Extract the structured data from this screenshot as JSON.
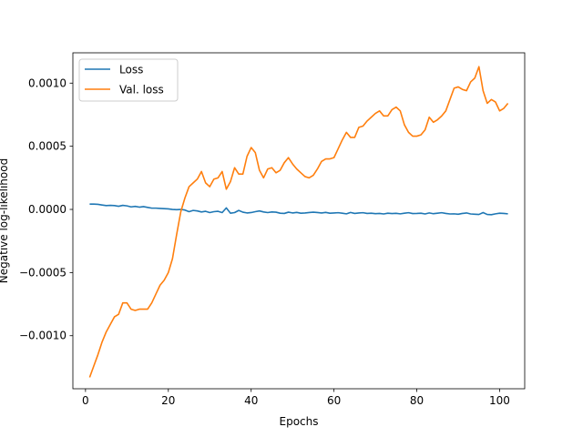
{
  "chart_data": {
    "type": "line",
    "title": "",
    "xlabel": "Epochs",
    "ylabel": "Negative log-likelihood",
    "xlim": [
      -3.05,
      106.05
    ],
    "ylim": [
      -0.00142,
      0.00124
    ],
    "xticks": [
      0,
      20,
      40,
      60,
      80,
      100
    ],
    "xtick_labels": [
      "0",
      "20",
      "40",
      "60",
      "80",
      "100"
    ],
    "yticks": [
      -0.001,
      -0.0005,
      0.0,
      0.0005,
      0.001
    ],
    "ytick_labels": [
      "−0.0010",
      "−0.0005",
      "0.0000",
      "0.0005",
      "0.0010"
    ],
    "grid": false,
    "legend_position": "top-left",
    "series": [
      {
        "name": "Loss",
        "color": "#1f77b4",
        "x": [
          1,
          2,
          3,
          4,
          5,
          6,
          7,
          8,
          9,
          10,
          11,
          12,
          13,
          14,
          15,
          16,
          17,
          18,
          19,
          20,
          21,
          22,
          23,
          24,
          25,
          26,
          27,
          28,
          29,
          30,
          31,
          32,
          33,
          34,
          35,
          36,
          37,
          38,
          39,
          40,
          41,
          42,
          43,
          44,
          45,
          46,
          47,
          48,
          49,
          50,
          51,
          52,
          53,
          54,
          55,
          56,
          57,
          58,
          59,
          60,
          61,
          62,
          63,
          64,
          65,
          66,
          67,
          68,
          69,
          70,
          71,
          72,
          73,
          74,
          75,
          76,
          77,
          78,
          79,
          80,
          81,
          82,
          83,
          84,
          85,
          86,
          87,
          88,
          89,
          90,
          91,
          92,
          93,
          94,
          95,
          96,
          97,
          98,
          99,
          100,
          101,
          102
        ],
        "y": [
          4.2e-05,
          4.2e-05,
          4e-05,
          3.5e-05,
          3e-05,
          3.2e-05,
          3e-05,
          2.5e-05,
          3.2e-05,
          2.8e-05,
          2e-05,
          2.4e-05,
          1.8e-05,
          2.2e-05,
          1.6e-05,
          1e-05,
          1e-05,
          8e-06,
          6e-06,
          4e-06,
          0.0,
          -2e-06,
          0.0,
          -5e-06,
          -1.8e-05,
          -8e-06,
          -1.2e-05,
          -2e-05,
          -1.5e-05,
          -2.5e-05,
          -1.8e-05,
          -1.5e-05,
          -2.5e-05,
          1.2e-05,
          -3e-05,
          -2.5e-05,
          -8e-06,
          -2.2e-05,
          -2.8e-05,
          -2.5e-05,
          -1.8e-05,
          -1.2e-05,
          -2e-05,
          -2.5e-05,
          -2e-05,
          -2.2e-05,
          -3e-05,
          -3.2e-05,
          -2.2e-05,
          -2.8e-05,
          -2.4e-05,
          -3e-05,
          -2.8e-05,
          -2.5e-05,
          -2.2e-05,
          -2.5e-05,
          -2.8e-05,
          -2.4e-05,
          -3e-05,
          -2.8e-05,
          -2.6e-05,
          -3e-05,
          -3.5e-05,
          -2.4e-05,
          -3.2e-05,
          -2.8e-05,
          -2.6e-05,
          -3.2e-05,
          -3e-05,
          -3.4e-05,
          -3.2e-05,
          -3.6e-05,
          -3e-05,
          -3.3e-05,
          -3.1e-05,
          -3.5e-05,
          -3e-05,
          -2.6e-05,
          -3.3e-05,
          -3.2e-05,
          -3e-05,
          -3.6e-05,
          -2.8e-05,
          -3.4e-05,
          -3e-05,
          -2.6e-05,
          -3.2e-05,
          -3.6e-05,
          -3.5e-05,
          -3.8e-05,
          -3.2e-05,
          -2.8e-05,
          -3.6e-05,
          -3.8e-05,
          -4e-05,
          -2.5e-05,
          -4e-05,
          -4.2e-05,
          -3.5e-05,
          -3e-05,
          -3.2e-05,
          -3.5e-05
        ]
      },
      {
        "name": "Val. loss",
        "color": "#ff7f0e",
        "x": [
          1,
          2,
          3,
          4,
          5,
          6,
          7,
          8,
          9,
          10,
          11,
          12,
          13,
          14,
          15,
          16,
          17,
          18,
          19,
          20,
          21,
          22,
          23,
          24,
          25,
          26,
          27,
          28,
          29,
          30,
          31,
          32,
          33,
          34,
          35,
          36,
          37,
          38,
          39,
          40,
          41,
          42,
          43,
          44,
          45,
          46,
          47,
          48,
          49,
          50,
          51,
          52,
          53,
          54,
          55,
          56,
          57,
          58,
          59,
          60,
          61,
          62,
          63,
          64,
          65,
          66,
          67,
          68,
          69,
          70,
          71,
          72,
          73,
          74,
          75,
          76,
          77,
          78,
          79,
          80,
          81,
          82,
          83,
          84,
          85,
          86,
          87,
          88,
          89,
          90,
          91,
          92,
          93,
          94,
          95,
          96,
          97,
          98,
          99,
          100,
          101,
          102
        ],
        "y": [
          -0.00133,
          -0.00124,
          -0.00115,
          -0.00105,
          -0.00097,
          -0.00091,
          -0.00085,
          -0.00083,
          -0.00074,
          -0.00074,
          -0.00079,
          -0.0008,
          -0.00079,
          -0.00079,
          -0.00079,
          -0.00074,
          -0.00067,
          -0.0006,
          -0.00056,
          -0.0005,
          -0.00039,
          -0.0002,
          -2e-05,
          9e-05,
          0.00018,
          0.00021,
          0.00024,
          0.0003,
          0.00021,
          0.00018,
          0.00024,
          0.00025,
          0.0003,
          0.00016,
          0.00022,
          0.00033,
          0.00028,
          0.00028,
          0.00042,
          0.00049,
          0.00045,
          0.00031,
          0.00025,
          0.00032,
          0.00033,
          0.00029,
          0.00031,
          0.00037,
          0.00041,
          0.00036,
          0.00032,
          0.00029,
          0.00026,
          0.00025,
          0.00027,
          0.00032,
          0.00038,
          0.0004,
          0.0004,
          0.00041,
          0.00048,
          0.00055,
          0.00061,
          0.00057,
          0.00057,
          0.00065,
          0.00066,
          0.0007,
          0.00073,
          0.00076,
          0.00078,
          0.00074,
          0.00074,
          0.00079,
          0.00081,
          0.00078,
          0.00067,
          0.00061,
          0.00058,
          0.00058,
          0.00059,
          0.00063,
          0.00073,
          0.00069,
          0.00071,
          0.00074,
          0.00078,
          0.00087,
          0.00096,
          0.00097,
          0.00095,
          0.00094,
          0.00101,
          0.00104,
          0.00113,
          0.00094,
          0.00084,
          0.00087,
          0.00085,
          0.00078,
          0.0008,
          0.00084
        ]
      }
    ]
  }
}
